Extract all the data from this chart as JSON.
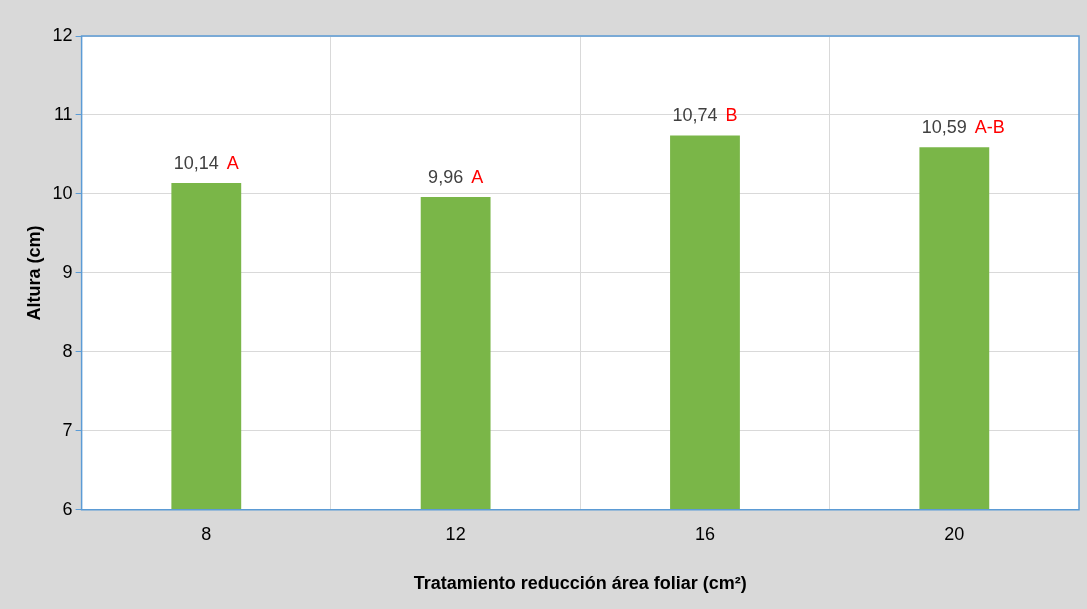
{
  "chart_data": {
    "type": "bar",
    "xlabel": "Tratamiento reducción área foliar (cm²)",
    "ylabel": "Altura (cm)",
    "categories": [
      "8",
      "12",
      "16",
      "20"
    ],
    "values": [
      10.14,
      9.96,
      10.74,
      10.59
    ],
    "value_labels": [
      "10,14",
      "9,96",
      "10,74",
      "10,59"
    ],
    "color": "#7ab648",
    "ylim": [
      6,
      12
    ],
    "yticks": [
      6,
      7,
      8,
      9,
      10,
      11,
      12
    ],
    "grid": true,
    "legend": false,
    "annotations": [
      {
        "text": "A",
        "x": "8",
        "y": 10.14
      },
      {
        "text": "A",
        "x": "12",
        "y": 9.96
      },
      {
        "text": "B",
        "x": "16",
        "y": 10.74
      },
      {
        "text": "A-B",
        "x": "20",
        "y": 10.59
      }
    ]
  }
}
